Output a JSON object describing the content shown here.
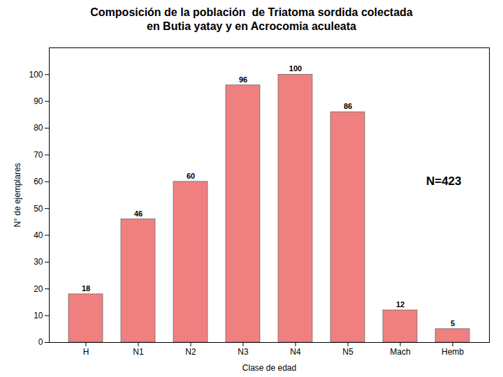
{
  "chart_data": {
    "type": "bar",
    "title": "Composición de la población  de Triatoma sordida colectada\nen Butia yatay y en Acrocomia aculeata",
    "categories": [
      "H",
      "N1",
      "N2",
      "N3",
      "N4",
      "N5",
      "Mach",
      "Hemb"
    ],
    "values": [
      18,
      46,
      60,
      96,
      100,
      86,
      12,
      5
    ],
    "color": "#F08080",
    "xlabel": "Clase de edad",
    "ylabel": "N° de ejemplares",
    "annotation": "N=423",
    "ylim": [
      0,
      110
    ],
    "yticks": [
      0,
      10,
      20,
      30,
      40,
      50,
      60,
      70,
      80,
      90,
      100
    ],
    "data_labels": true,
    "grid": false
  }
}
